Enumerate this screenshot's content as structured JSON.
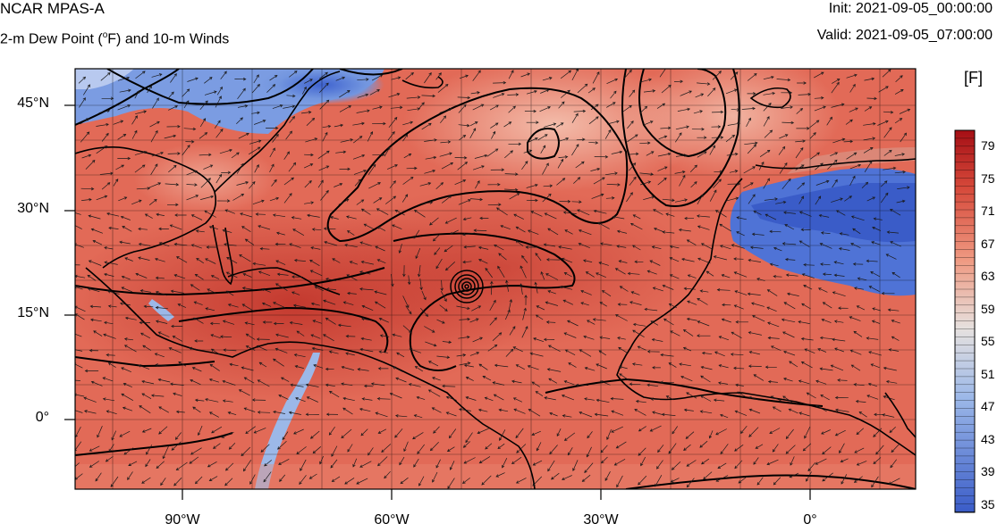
{
  "header": {
    "title": "NCAR MPAS-A",
    "subtitle_prefix": "2-m Dew Point (",
    "subtitle_deg": "o",
    "subtitle_suffix": "F) and 10-m Winds",
    "init": "Init: 2021-09-05_00:00:00",
    "valid": "Valid: 2021-09-05_07:00:00"
  },
  "map": {
    "lat_labels": [
      "45°N",
      "30°N",
      "15°N",
      "0°"
    ],
    "lon_labels": [
      "90°W",
      "60°W",
      "30°W",
      "0°"
    ]
  },
  "colorbar": {
    "unit": "[F]",
    "ticks": [
      "79",
      "75",
      "71",
      "67",
      "63",
      "59",
      "55",
      "51",
      "47",
      "43",
      "39",
      "35"
    ],
    "colors": {
      "max": "#a50f15",
      "high": "#d6493a",
      "mid_high": "#ef9a82",
      "neutral": "#e6e1df",
      "mid_low": "#9cb8e8",
      "low": "#3a5cc8"
    }
  }
}
